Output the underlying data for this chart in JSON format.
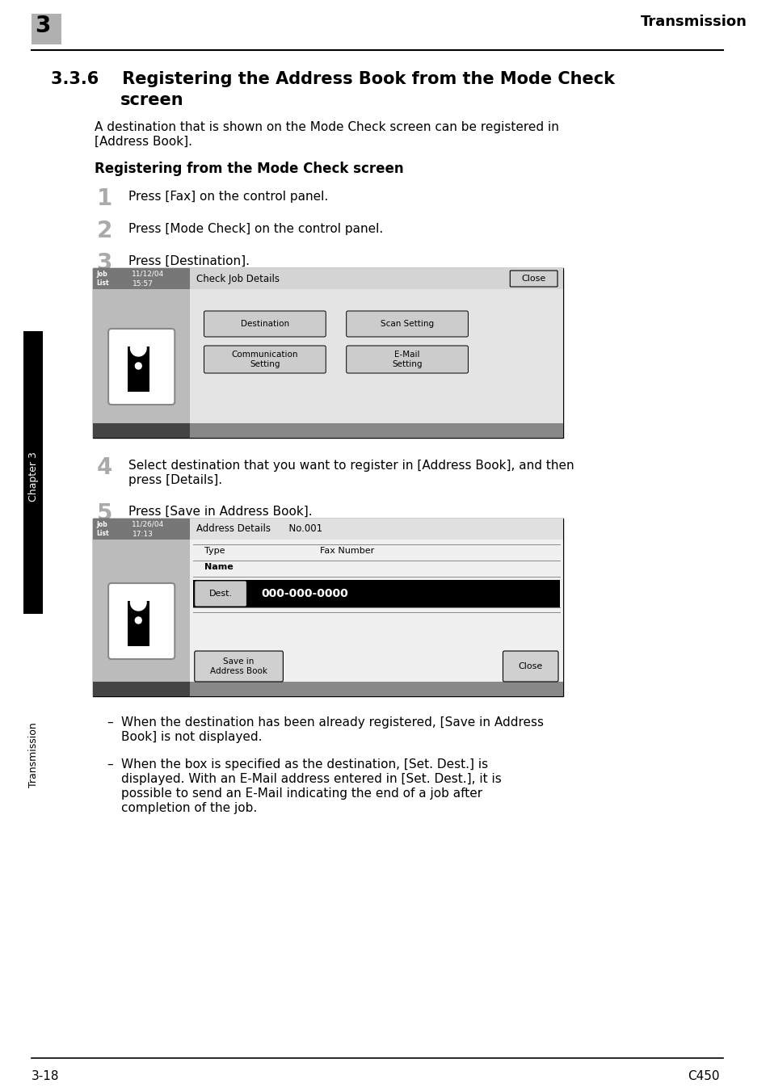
{
  "page_bg": "#ffffff",
  "header_text": "Transmission",
  "header_num": "3",
  "header_num_bg": "#b0b0b0",
  "footer_left": "3-18",
  "footer_right": "C450",
  "section_num": "3.3.6",
  "section_title_line1": "Registering the Address Book from the Mode Check",
  "section_title_line2": "screen",
  "subheading": "Registering from the Mode Check screen",
  "step1": "Press [Fax] on the control panel.",
  "step2": "Press [Mode Check] on the control panel.",
  "step3": "Press [Destination].",
  "step4_line1": "Select destination that you want to register in [Address Book], and then",
  "step4_line2": "press [Details].",
  "step5": "Press [Save in Address Book].",
  "note1_line1": "When the destination has been already registered, [Save in Address",
  "note1_line2": "Book] is not displayed.",
  "note2_line1": "When the box is specified as the destination, [Set. Dest.] is",
  "note2_line2": "displayed. With an E-Mail address entered in [Set. Dest.], it is",
  "note2_line3": "possible to send an E-Mail indicating the end of a job after",
  "note2_line4": "completion of the job.",
  "sidebar_text": "Transmission",
  "sidebar_chapter": "Chapter 3",
  "screen1_job_list": "Job\nList",
  "screen1_date": "11/12/04",
  "screen1_time": "15:57",
  "screen1_title": "Check Job Details",
  "screen1_close_btn": "Close",
  "screen1_btn1": "Destination",
  "screen1_btn2": "Scan Setting",
  "screen1_btn3": "Communication\nSetting",
  "screen1_btn4": "E-Mail\nSetting",
  "screen2_job_list": "Job\nList",
  "screen2_date": "11/26/04",
  "screen2_time": "17:13",
  "screen2_title": "Address Details",
  "screen2_no": "No.001",
  "screen2_col1": "Type",
  "screen2_col2": "Fax Number",
  "screen2_row1": "Name",
  "screen2_dest_label": "Dest.",
  "screen2_dest_value": "000-000-0000",
  "screen2_save_btn": "Save in\nAddress Book",
  "screen2_close_btn": "Close",
  "intro_line1": "A destination that is shown on the Mode Check screen can be registered in",
  "intro_line2": "[Address Book]."
}
